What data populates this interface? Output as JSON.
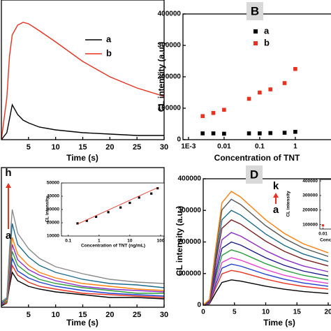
{
  "chart_data": [
    {
      "type": "line",
      "xlabel": "Time (s)",
      "xlim": [
        0,
        30
      ],
      "ylim": [
        0,
        1
      ],
      "xticks": [
        5,
        10,
        15,
        20,
        25,
        30
      ],
      "x": [
        0,
        1,
        1.5,
        2,
        3,
        4,
        5,
        7,
        10,
        15,
        20,
        25,
        30
      ],
      "series": [
        {
          "name": "a",
          "color": "#000000",
          "values": [
            0,
            0.05,
            0.15,
            0.25,
            0.18,
            0.14,
            0.12,
            0.09,
            0.07,
            0.05,
            0.04,
            0.03,
            0.03
          ]
        },
        {
          "name": "b",
          "color": "#e8321f",
          "values": [
            0,
            0.3,
            0.6,
            0.75,
            0.82,
            0.84,
            0.83,
            0.78,
            0.7,
            0.56,
            0.45,
            0.37,
            0.31
          ]
        }
      ]
    },
    {
      "type": "scatter",
      "panel_label": "B",
      "xlabel": "Concentration of TNT",
      "ylabel": "CL intensity (a.u.)",
      "xlog": true,
      "xlim": [
        0.0007,
        11
      ],
      "ylim": [
        0,
        400000
      ],
      "xticks": [
        {
          "value": 0.001,
          "label": "1E-3"
        },
        0.01,
        0.1,
        1
      ],
      "yticks": [
        0,
        100000,
        200000,
        300000,
        400000
      ],
      "series": [
        {
          "name": "a",
          "color": "#000000",
          "x": [
            0.0025,
            0.005,
            0.01,
            0.05,
            0.1,
            0.2,
            0.5,
            1
          ],
          "values": [
            20000,
            20000,
            19000,
            20000,
            20000,
            21000,
            22000,
            25000
          ]
        },
        {
          "name": "b",
          "color": "#e8321f",
          "x": [
            0.0025,
            0.005,
            0.01,
            0.05,
            0.1,
            0.2,
            0.5,
            1
          ],
          "values": [
            75000,
            85000,
            95000,
            130000,
            150000,
            160000,
            180000,
            225000
          ]
        }
      ]
    },
    {
      "type": "line",
      "xlabel": "Time (s)",
      "xlim": [
        0,
        30
      ],
      "ylim": [
        0,
        1
      ],
      "xticks": [
        5,
        10,
        15,
        20,
        25,
        30
      ],
      "annotations": [
        "h",
        "a"
      ],
      "x": [
        0,
        1,
        1.5,
        2,
        3,
        5,
        7,
        10,
        15,
        20,
        25,
        30
      ],
      "series": [
        {
          "color": "#000000",
          "values": [
            0.01,
            0.03,
            0.15,
            0.25,
            0.19,
            0.15,
            0.13,
            0.11,
            0.09,
            0.07,
            0.07,
            0.06
          ]
        },
        {
          "color": "#e8321f",
          "values": [
            0.02,
            0.03,
            0.18,
            0.3,
            0.23,
            0.18,
            0.15,
            0.13,
            0.1,
            0.09,
            0.08,
            0.07
          ]
        },
        {
          "color": "#1f3fd0",
          "values": [
            0.02,
            0.04,
            0.21,
            0.35,
            0.26,
            0.21,
            0.18,
            0.15,
            0.12,
            0.1,
            0.09,
            0.08
          ]
        },
        {
          "color": "#2a9d3a",
          "values": [
            0.02,
            0.04,
            0.24,
            0.4,
            0.3,
            0.24,
            0.2,
            0.17,
            0.14,
            0.12,
            0.1,
            0.1
          ]
        },
        {
          "color": "#8b2fc9",
          "values": [
            0.02,
            0.05,
            0.27,
            0.45,
            0.34,
            0.27,
            0.23,
            0.19,
            0.15,
            0.13,
            0.12,
            0.11
          ]
        },
        {
          "color": "#ff7f0e",
          "values": [
            0.03,
            0.05,
            0.3,
            0.5,
            0.38,
            0.3,
            0.25,
            0.21,
            0.17,
            0.15,
            0.13,
            0.12
          ]
        },
        {
          "color": "#1b6b8f",
          "values": [
            0.03,
            0.06,
            0.36,
            0.6,
            0.45,
            0.36,
            0.3,
            0.25,
            0.2,
            0.17,
            0.16,
            0.14
          ]
        },
        {
          "color": "#8a8a8a",
          "values": [
            0.04,
            0.07,
            0.42,
            0.7,
            0.53,
            0.42,
            0.35,
            0.29,
            0.24,
            0.2,
            0.18,
            0.17
          ]
        }
      ]
    },
    {
      "type": "scatter",
      "xlabel": "Concentration of TNT (ng/mL)",
      "ylabel": "CL intensity",
      "xlog": true,
      "xlim": [
        0.06,
        130
      ],
      "ylim": [
        10000,
        50000
      ],
      "xticks": [
        0.1,
        1,
        10,
        100
      ],
      "yticks": [
        10000,
        20000,
        30000,
        40000,
        50000
      ],
      "series": [
        {
          "color": "#000000",
          "x": [
            0.2,
            0.4,
            0.8,
            2,
            5,
            10,
            20,
            50,
            80
          ],
          "values": [
            19500,
            21500,
            24500,
            28000,
            31500,
            35000,
            39000,
            42000,
            46000
          ]
        },
        {
          "color": "#e8321f",
          "style": "line",
          "x": [
            0.2,
            80
          ],
          "values": [
            19000,
            46500
          ]
        }
      ]
    },
    {
      "type": "line",
      "panel_label": "D",
      "xlabel": "Time (s)",
      "ylabel": "CL intensity (a.u.)",
      "xlim": [
        0,
        20
      ],
      "ylim": [
        0,
        400000
      ],
      "xticks": [
        0,
        5,
        10,
        15,
        20
      ],
      "yticks": [
        0,
        100000,
        200000,
        300000,
        400000
      ],
      "annotations": [
        "k",
        "a"
      ],
      "x": [
        0,
        1,
        2,
        3,
        4.5,
        6,
        8,
        10,
        13,
        16,
        20
      ],
      "series": [
        {
          "color": "#000000",
          "values": [
            0,
            4000,
            40000,
            72000,
            80000,
            76000,
            68000,
            60000,
            50400,
            43200,
            36800
          ]
        },
        {
          "color": "#e8321f",
          "values": [
            0,
            5500,
            55000,
            99000,
            110000,
            104500,
            93500,
            82500,
            69300,
            59400,
            50600
          ]
        },
        {
          "color": "#1f3fd0",
          "values": [
            0,
            6500,
            65000,
            117000,
            130000,
            123500,
            110500,
            97500,
            81900,
            70200,
            59800
          ]
        },
        {
          "color": "#e83fd0",
          "values": [
            0,
            7500,
            75000,
            135000,
            150000,
            142500,
            127500,
            112500,
            94500,
            81000,
            69000
          ]
        },
        {
          "color": "#2a9d3a",
          "values": [
            0,
            8750,
            87500,
            157500,
            175000,
            166250,
            148750,
            131250,
            110250,
            94500,
            80500
          ]
        },
        {
          "color": "#1a1a8c",
          "values": [
            0,
            10000,
            100000,
            180000,
            200000,
            190000,
            170000,
            150000,
            126000,
            108000,
            92000
          ]
        },
        {
          "color": "#8b2fc9",
          "values": [
            0,
            11500,
            115000,
            207000,
            230000,
            218500,
            195500,
            172500,
            144900,
            124200,
            105800
          ]
        },
        {
          "color": "#7a1f1f",
          "values": [
            0,
            13500,
            135000,
            243000,
            270000,
            256500,
            229500,
            202500,
            170100,
            145800,
            124200
          ]
        },
        {
          "color": "#1b6b8f",
          "values": [
            0,
            15000,
            150000,
            270000,
            300000,
            285000,
            255000,
            225000,
            189000,
            162000,
            138000
          ]
        },
        {
          "color": "#555555",
          "values": [
            0,
            16750,
            167500,
            301500,
            335000,
            318250,
            284750,
            251250,
            211050,
            180900,
            154100
          ]
        },
        {
          "color": "#ff7f0e",
          "values": [
            0,
            18000,
            180000,
            324000,
            360000,
            342000,
            306000,
            270000,
            226800,
            194400,
            165600
          ]
        }
      ]
    },
    {
      "type": "scatter",
      "xlabel": "Concen",
      "ylabel": "CL intensity",
      "xlog": true,
      "xlim": [
        0.008,
        0.1
      ],
      "ylim": [
        70000,
        410000
      ],
      "xticks": [
        0.01
      ],
      "yticks": [
        100000,
        200000,
        300000,
        400000
      ],
      "series": [
        {
          "color": "#e8321f",
          "x": [
            0.01,
            0.02,
            0.05
          ],
          "values": [
            95000,
            110000,
            140000
          ]
        }
      ]
    }
  ]
}
